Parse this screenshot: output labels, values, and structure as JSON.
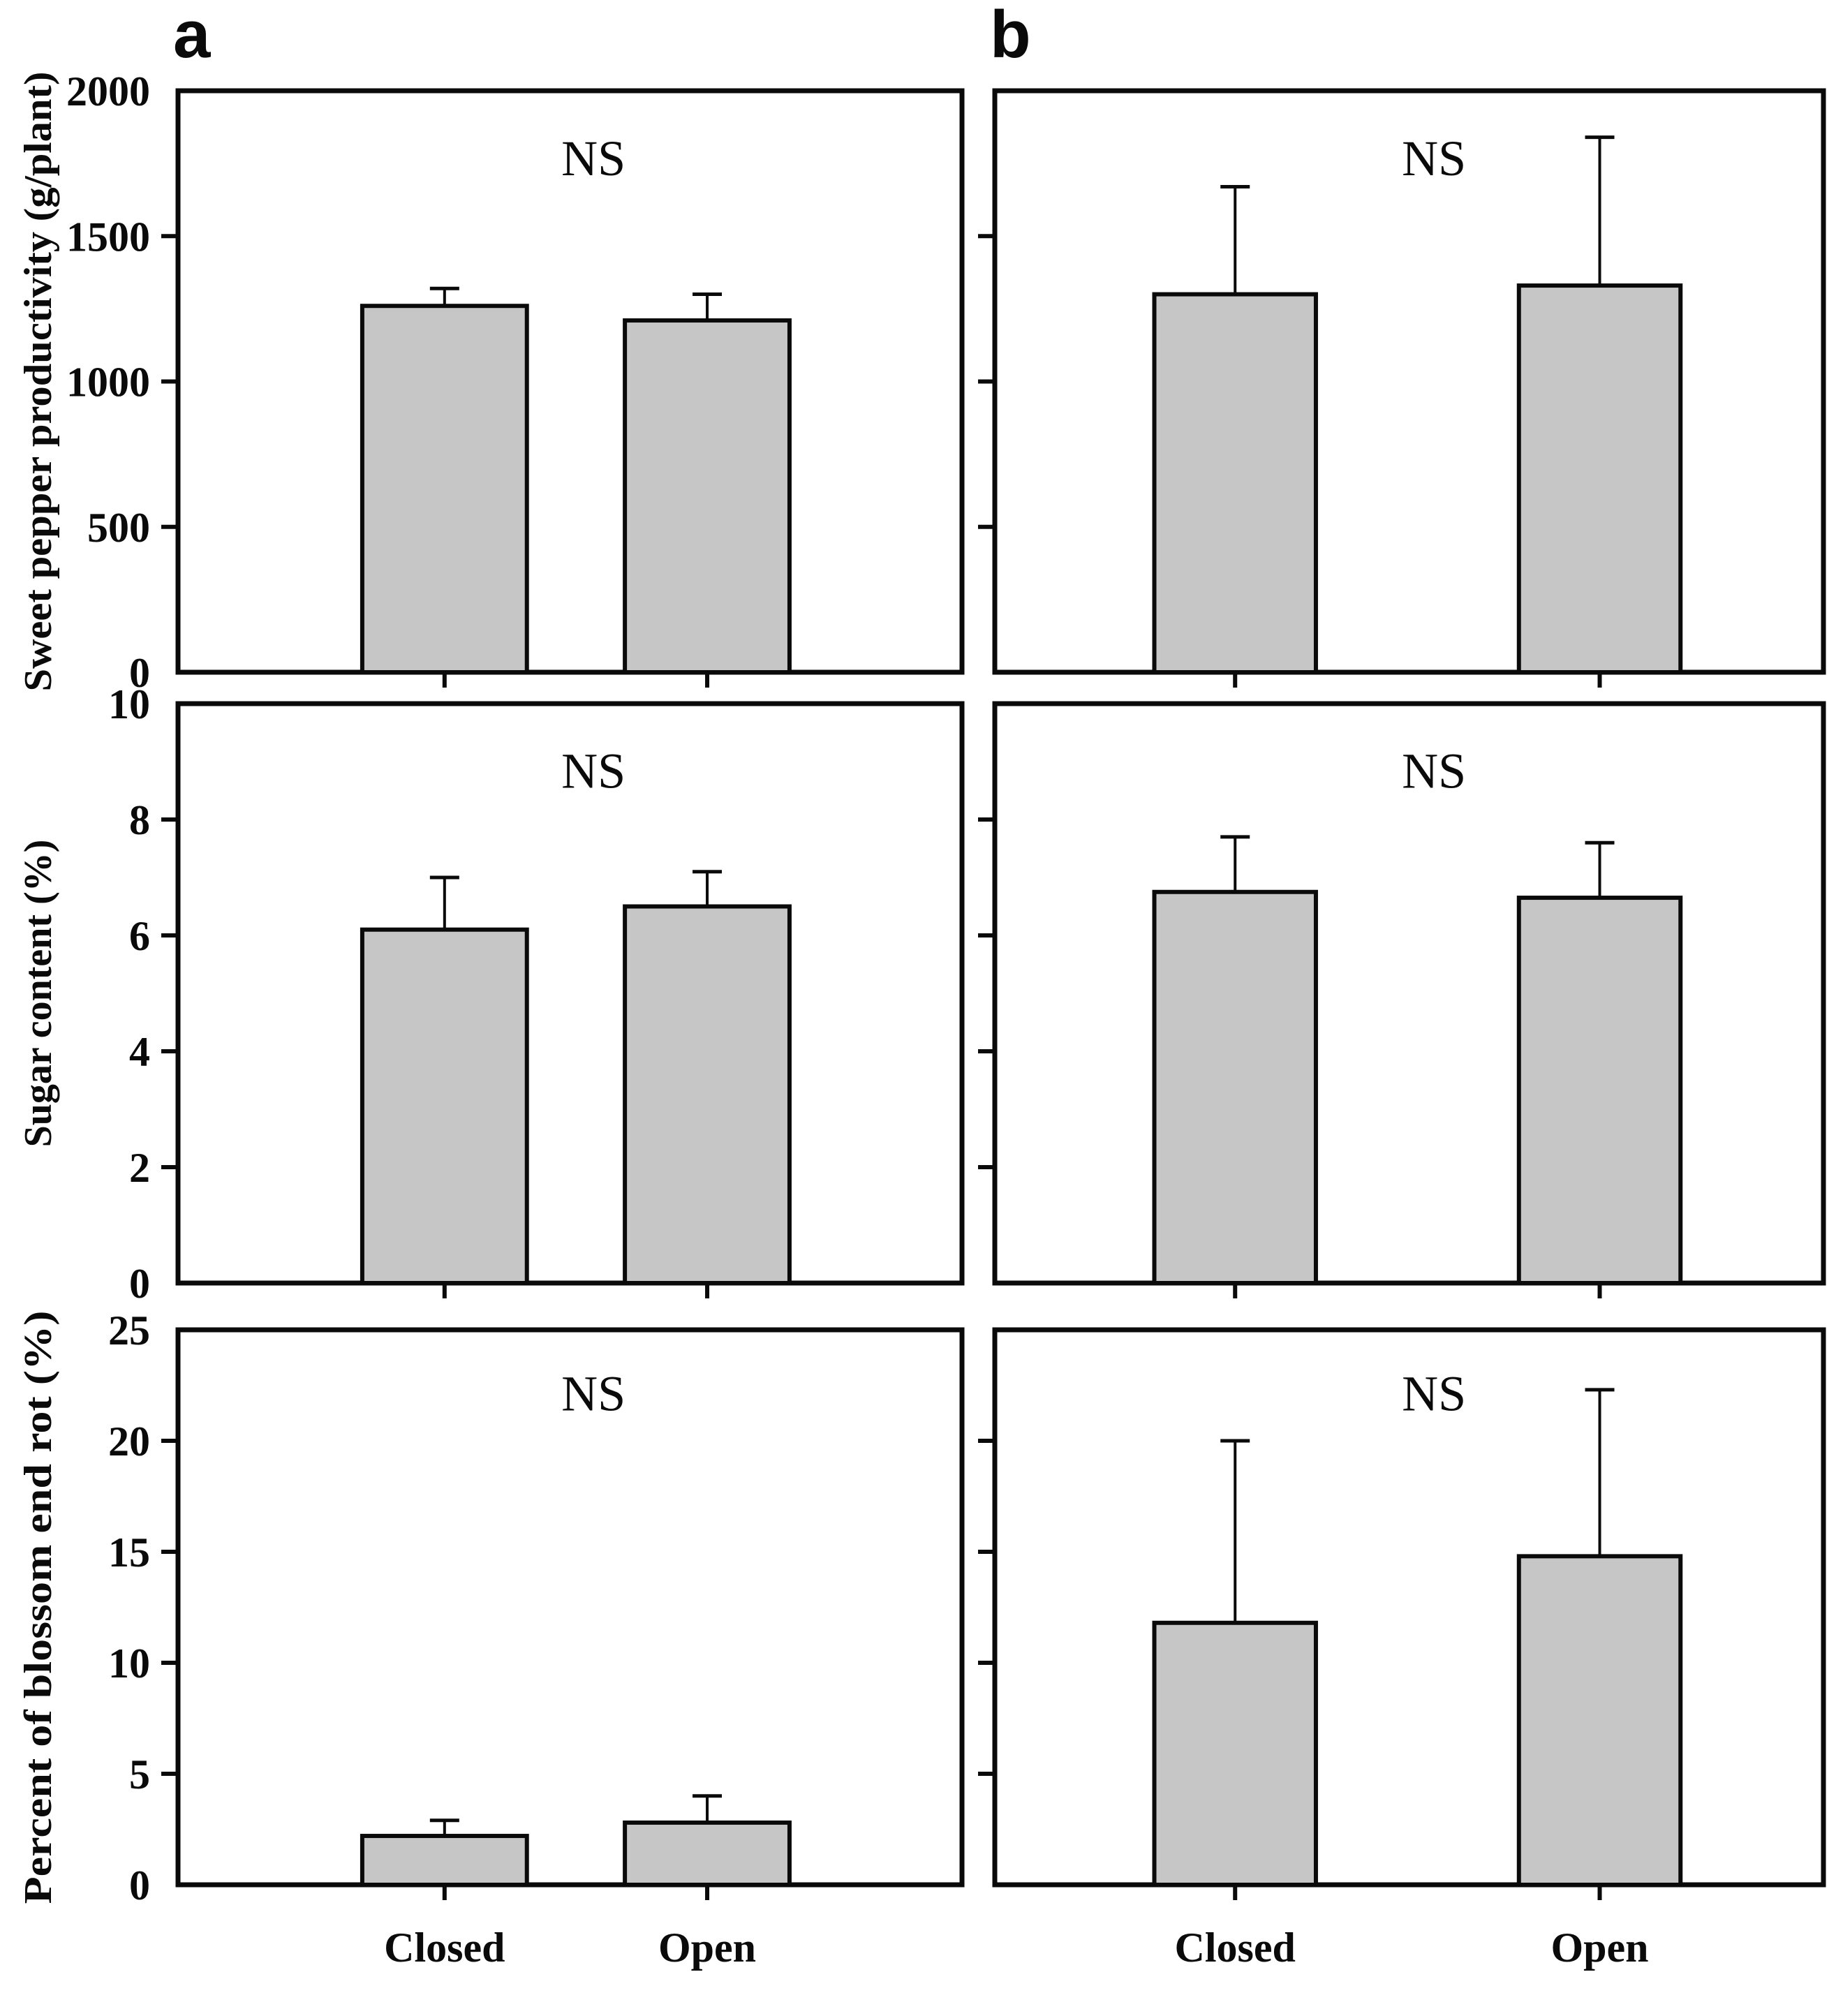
{
  "figure": {
    "panel_letters": [
      "a",
      "b"
    ],
    "annotation": "NS",
    "bar_fill_color": "#c6c6c6",
    "axis_color": "#0a0a0a",
    "background_color": "#ffffff",
    "categories": [
      "Closed",
      "Open"
    ]
  },
  "chart_data": [
    {
      "id": "productivity-a",
      "panel": "a",
      "row": 0,
      "col": 0,
      "type": "bar",
      "ylabel": "Sweet pepper productivity (g/plant)",
      "ylim": [
        0,
        2000
      ],
      "yticks": [
        0,
        500,
        1000,
        1500,
        2000
      ],
      "show_ytick_labels": true,
      "categories": [
        "Closed",
        "Open"
      ],
      "show_xtick_labels": false,
      "values": [
        1260,
        1210
      ],
      "errors_plus": [
        60,
        90
      ],
      "annotation": "NS"
    },
    {
      "id": "productivity-b",
      "panel": "b",
      "row": 0,
      "col": 1,
      "type": "bar",
      "ylabel": "",
      "ylim": [
        0,
        2000
      ],
      "yticks": [
        0,
        500,
        1000,
        1500,
        2000
      ],
      "show_ytick_labels": false,
      "categories": [
        "Closed",
        "Open"
      ],
      "show_xtick_labels": false,
      "values": [
        1300,
        1330
      ],
      "errors_plus": [
        370,
        510
      ],
      "annotation": "NS"
    },
    {
      "id": "sugar-content-a",
      "panel": "a",
      "row": 1,
      "col": 0,
      "type": "bar",
      "ylabel": "Sugar content (%)",
      "ylim": [
        0,
        10
      ],
      "yticks": [
        0,
        2,
        4,
        6,
        8,
        10
      ],
      "show_ytick_labels": true,
      "categories": [
        "Closed",
        "Open"
      ],
      "show_xtick_labels": false,
      "values": [
        6.1,
        6.5
      ],
      "errors_plus": [
        0.9,
        0.6
      ],
      "annotation": "NS"
    },
    {
      "id": "sugar-content-b",
      "panel": "b",
      "row": 1,
      "col": 1,
      "type": "bar",
      "ylabel": "",
      "ylim": [
        0,
        10
      ],
      "yticks": [
        0,
        2,
        4,
        6,
        8,
        10
      ],
      "show_ytick_labels": false,
      "categories": [
        "Closed",
        "Open"
      ],
      "show_xtick_labels": false,
      "values": [
        6.75,
        6.65
      ],
      "errors_plus": [
        0.95,
        0.95
      ],
      "annotation": "NS"
    },
    {
      "id": "blossom-end-rot-a",
      "panel": "a",
      "row": 2,
      "col": 0,
      "type": "bar",
      "ylabel": "Percent of blossom end rot (%)",
      "ylim": [
        0,
        25
      ],
      "yticks": [
        0,
        5,
        10,
        15,
        20,
        25
      ],
      "show_ytick_labels": true,
      "categories": [
        "Closed",
        "Open"
      ],
      "show_xtick_labels": true,
      "values": [
        2.2,
        2.8
      ],
      "errors_plus": [
        0.7,
        1.2
      ],
      "annotation": "NS"
    },
    {
      "id": "blossom-end-rot-b",
      "panel": "b",
      "row": 2,
      "col": 1,
      "type": "bar",
      "ylabel": "",
      "ylim": [
        0,
        25
      ],
      "yticks": [
        0,
        5,
        10,
        15,
        20,
        25
      ],
      "show_ytick_labels": false,
      "categories": [
        "Closed",
        "Open"
      ],
      "show_xtick_labels": true,
      "values": [
        11.8,
        14.8
      ],
      "errors_plus": [
        8.2,
        7.5
      ],
      "annotation": "NS"
    }
  ]
}
